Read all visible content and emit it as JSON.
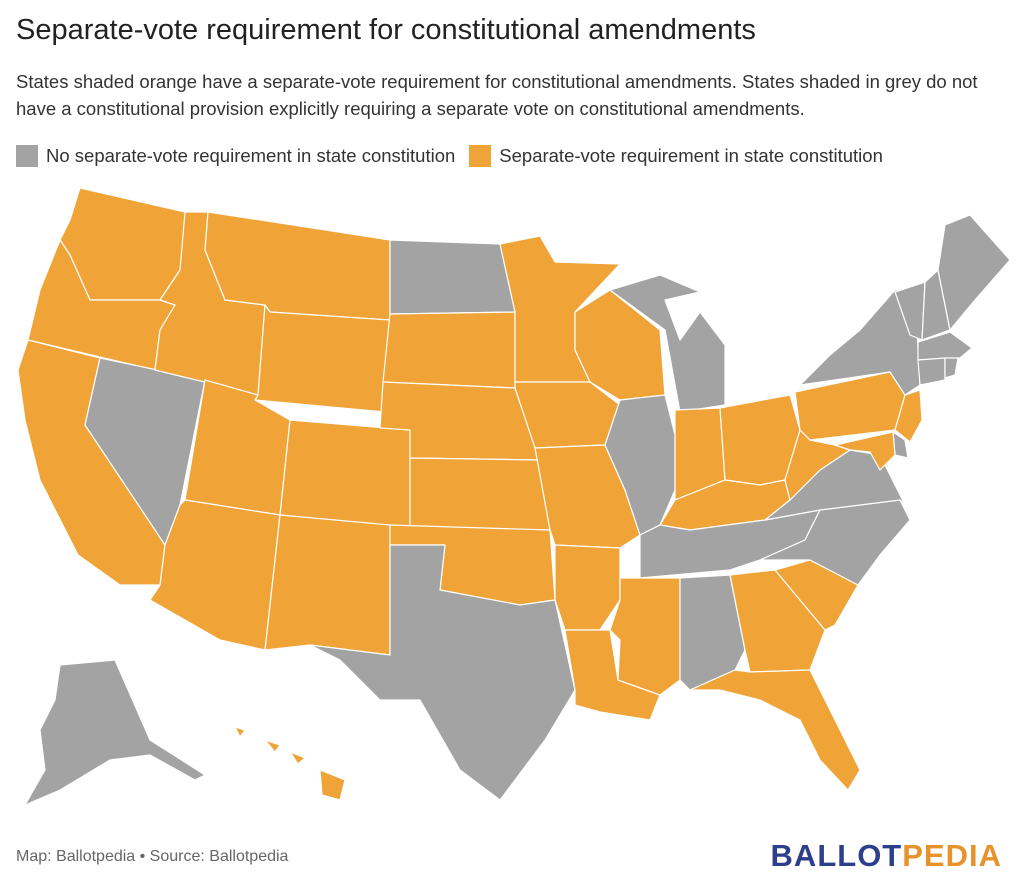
{
  "title": "Separate-vote requirement for constitutional amendments",
  "subtitle": "States shaded orange have a separate-vote requirement for constitutional amendments. States shaded in grey do not have a constitutional provision explicitly requiring a separate vote on constitutional amendments.",
  "legend": [
    {
      "label": "No separate-vote requirement in state constitution",
      "color": "#a3a3a3"
    },
    {
      "label": "Separate-vote requirement in state constitution",
      "color": "#f0a337"
    }
  ],
  "colors": {
    "grey": "#a3a3a3",
    "orange": "#f0a337"
  },
  "footer": {
    "credit": "Map: Ballotpedia • Source: Ballotpedia"
  },
  "logo": {
    "part1": "BALLOT",
    "part2": "PEDIA"
  },
  "states": {
    "WA": "orange",
    "OR": "orange",
    "CA": "orange",
    "NV": "grey",
    "ID": "orange",
    "MT": "orange",
    "WY": "orange",
    "UT": "orange",
    "AZ": "orange",
    "CO": "orange",
    "NM": "orange",
    "ND": "grey",
    "SD": "orange",
    "NE": "orange",
    "KS": "orange",
    "OK": "orange",
    "TX": "grey",
    "MN": "orange",
    "IA": "orange",
    "MO": "orange",
    "AR": "orange",
    "LA": "orange",
    "WI": "orange",
    "IL": "grey",
    "MI": "grey",
    "IN": "orange",
    "OH": "orange",
    "KY": "orange",
    "TN": "grey",
    "MS": "orange",
    "AL": "grey",
    "GA": "orange",
    "FL": "orange",
    "SC": "orange",
    "NC": "grey",
    "VA": "grey",
    "WV": "orange",
    "PA": "orange",
    "NY": "grey",
    "VT": "grey",
    "NH": "grey",
    "ME": "grey",
    "MA": "grey",
    "RI": "grey",
    "CT": "grey",
    "NJ": "orange",
    "DE": "grey",
    "MD": "orange",
    "AK": "grey",
    "HI": "orange"
  }
}
